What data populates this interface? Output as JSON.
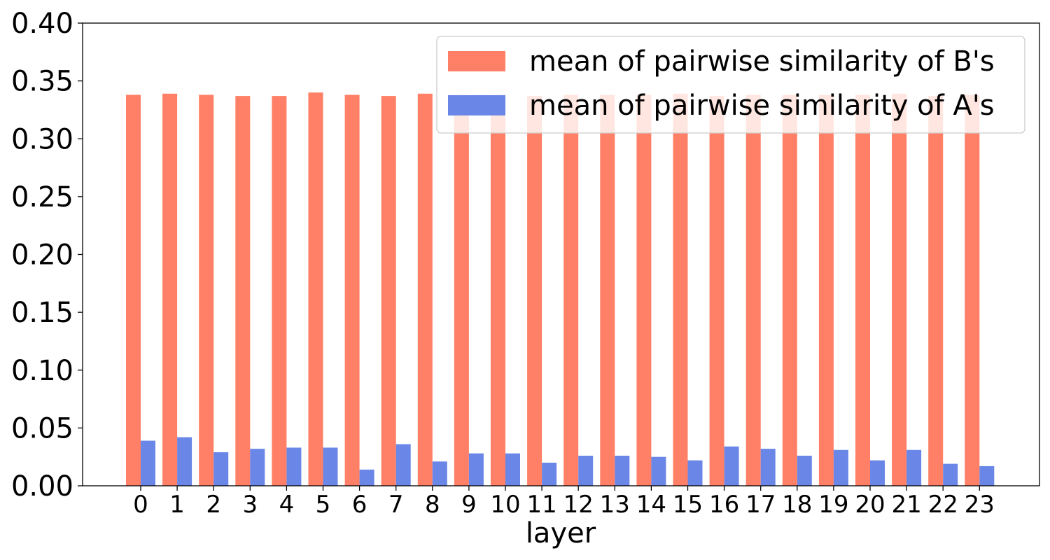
{
  "chart_data": {
    "type": "bar",
    "title": "",
    "xlabel": "layer",
    "ylabel": "",
    "ylim": [
      0,
      0.4
    ],
    "yticks": [
      "0.00",
      "0.05",
      "0.10",
      "0.15",
      "0.20",
      "0.25",
      "0.30",
      "0.35",
      "0.40"
    ],
    "categories": [
      "0",
      "1",
      "2",
      "3",
      "4",
      "5",
      "6",
      "7",
      "8",
      "9",
      "10",
      "11",
      "12",
      "13",
      "14",
      "15",
      "16",
      "17",
      "18",
      "19",
      "20",
      "21",
      "22",
      "23"
    ],
    "series": [
      {
        "name": "mean of pairwise similarity of B's",
        "color": "#ff8066",
        "values": [
          0.338,
          0.339,
          0.338,
          0.337,
          0.337,
          0.34,
          0.338,
          0.337,
          0.339,
          0.338,
          0.338,
          0.337,
          0.338,
          0.338,
          0.338,
          0.339,
          0.337,
          0.338,
          0.338,
          0.338,
          0.338,
          0.339,
          0.337,
          0.338
        ]
      },
      {
        "name": "mean of pairwise similarity of A's",
        "color": "#6a87e8",
        "values": [
          0.039,
          0.042,
          0.029,
          0.032,
          0.033,
          0.033,
          0.014,
          0.036,
          0.021,
          0.028,
          0.028,
          0.02,
          0.026,
          0.026,
          0.025,
          0.022,
          0.034,
          0.032,
          0.026,
          0.031,
          0.022,
          0.031,
          0.019,
          0.017
        ]
      }
    ],
    "legend": {
      "placement": "top-right"
    },
    "grid": false
  }
}
